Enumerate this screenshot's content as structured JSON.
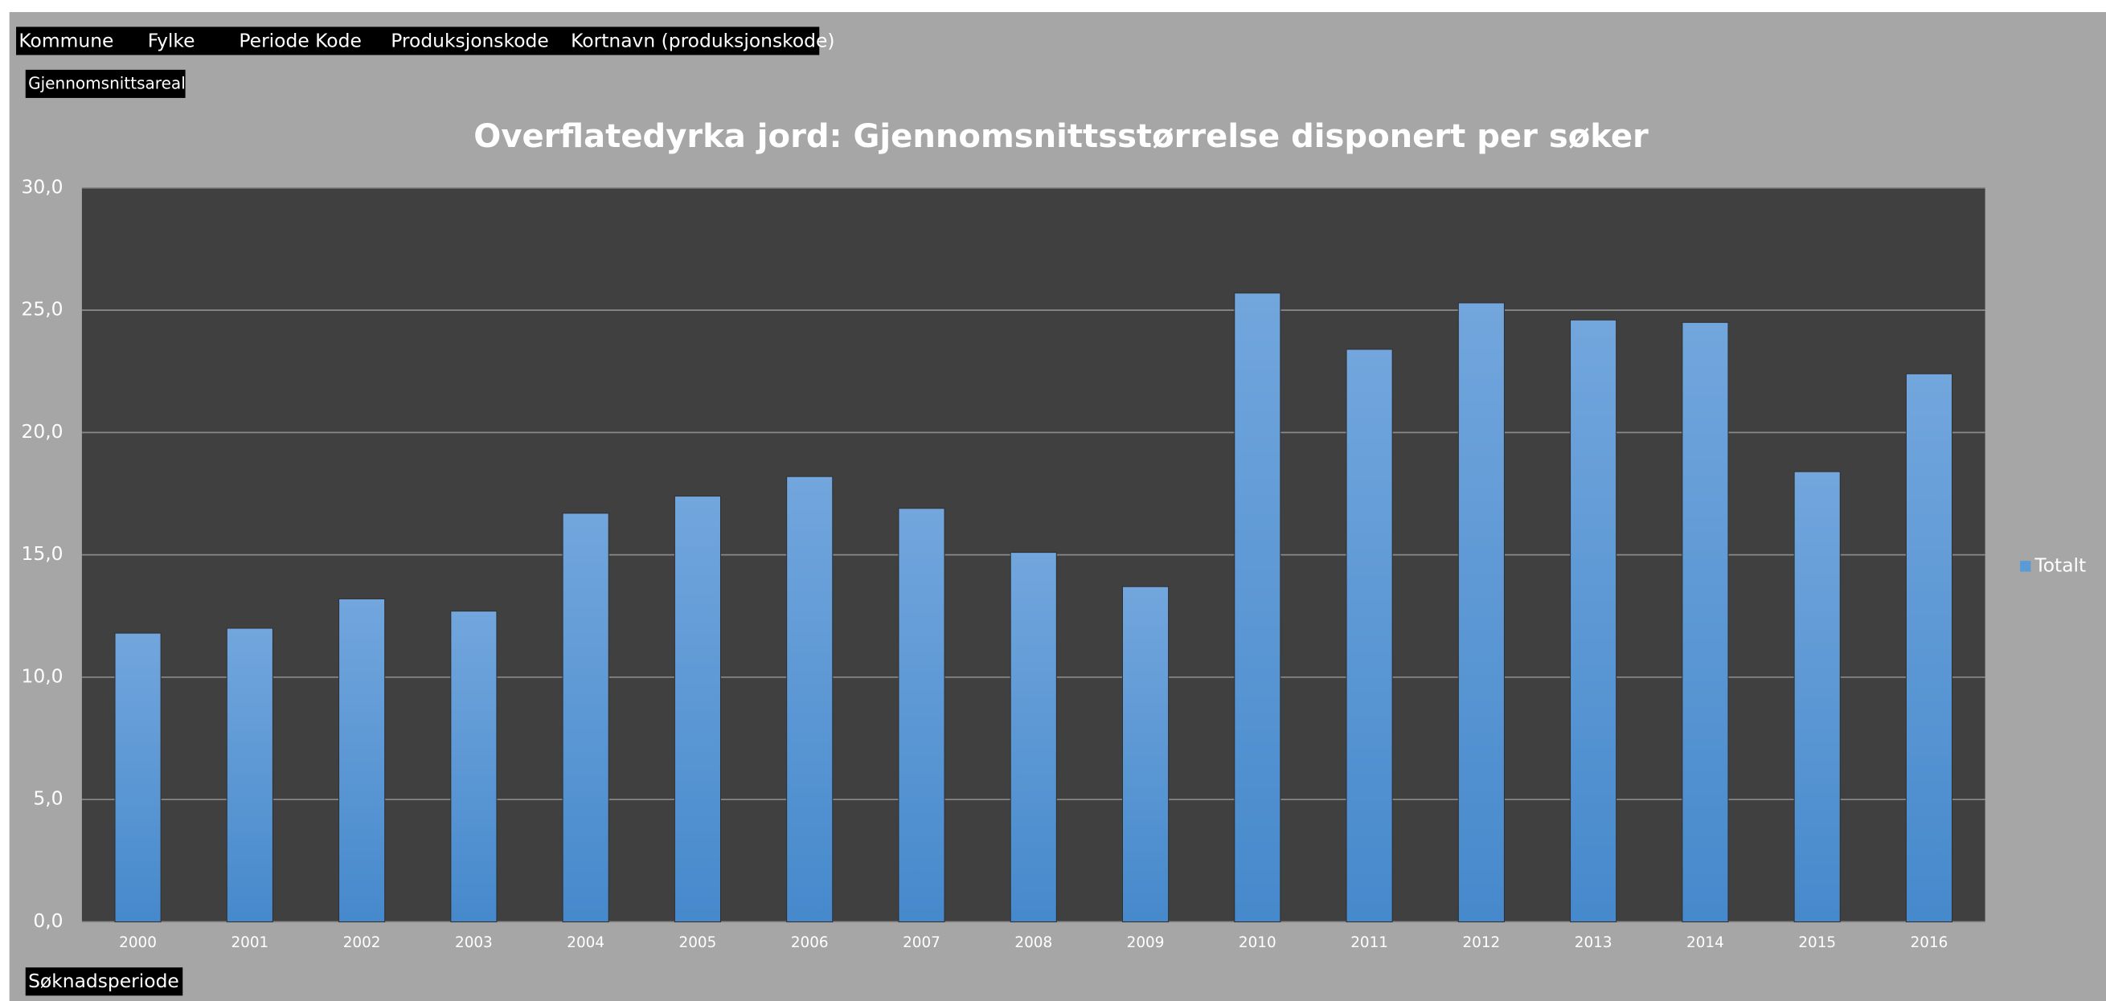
{
  "chart_data": {
    "type": "bar",
    "filter_fields": [
      "Kommune",
      "Fylke",
      "Periode Kode",
      "Produksjonskode",
      "Kortnavn (produksjonskode)"
    ],
    "value_field": "Gjennomsnittsareal",
    "axis_field": "Søknadsperiode",
    "title": "Overflatedyrka jord: Gjennomsnittsstørrelse disponert per søker",
    "categories": [
      "2000",
      "2001",
      "2002",
      "2003",
      "2004",
      "2005",
      "2006",
      "2007",
      "2008",
      "2009",
      "2010",
      "2011",
      "2012",
      "2013",
      "2014",
      "2015",
      "2016"
    ],
    "series": [
      {
        "name": "Totalt",
        "color": "#5b9bd5",
        "values": [
          11.8,
          12.0,
          13.2,
          12.7,
          16.7,
          17.4,
          18.2,
          16.9,
          15.1,
          13.7,
          25.7,
          23.4,
          25.3,
          24.6,
          24.5,
          18.4,
          22.4
        ]
      }
    ],
    "ylim": [
      0,
      30
    ],
    "yticks": [
      {
        "value": 0,
        "label": "0,0"
      },
      {
        "value": 5,
        "label": "5,0"
      },
      {
        "value": 10,
        "label": "10,0"
      },
      {
        "value": 15,
        "label": "15,0"
      },
      {
        "value": 20,
        "label": "20,0"
      },
      {
        "value": 25,
        "label": "25,0"
      },
      {
        "value": 30,
        "label": "30,0"
      }
    ],
    "grid": true,
    "legend": "right"
  }
}
